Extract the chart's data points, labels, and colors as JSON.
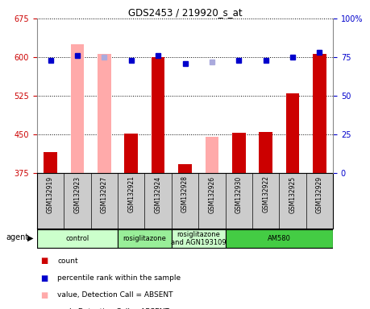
{
  "title": "GDS2453 / 219920_s_at",
  "samples": [
    "GSM132919",
    "GSM132923",
    "GSM132927",
    "GSM132921",
    "GSM132924",
    "GSM132928",
    "GSM132926",
    "GSM132930",
    "GSM132922",
    "GSM132925",
    "GSM132929"
  ],
  "count_values": [
    415,
    null,
    null,
    452,
    600,
    393,
    null,
    453,
    455,
    530,
    607
  ],
  "count_absent": [
    null,
    625,
    607,
    null,
    null,
    null,
    445,
    null,
    null,
    null,
    null
  ],
  "percentile_values": [
    73,
    76,
    null,
    73,
    76,
    71,
    null,
    73,
    73,
    75,
    78
  ],
  "percentile_absent": [
    null,
    null,
    75,
    null,
    null,
    null,
    72,
    null,
    null,
    null,
    null
  ],
  "ylim_left": [
    375,
    675
  ],
  "ylim_right": [
    0,
    100
  ],
  "yticks_left": [
    375,
    450,
    525,
    600,
    675
  ],
  "yticks_right": [
    0,
    25,
    50,
    75,
    100
  ],
  "agent_groups": [
    {
      "label": "control",
      "start": 0,
      "end": 3,
      "color": "#ccffcc"
    },
    {
      "label": "rosiglitazone",
      "start": 3,
      "end": 5,
      "color": "#99ee99"
    },
    {
      "label": "rosiglitazone\nand AGN193109",
      "start": 5,
      "end": 7,
      "color": "#ccffcc"
    },
    {
      "label": "AM580",
      "start": 7,
      "end": 11,
      "color": "#44cc44"
    }
  ],
  "bar_width": 0.5,
  "count_color": "#cc0000",
  "count_absent_color": "#ffaaaa",
  "percentile_color": "#0000cc",
  "percentile_absent_color": "#aaaadd",
  "left_label_color": "#cc0000",
  "right_label_color": "#0000cc",
  "legend_items": [
    {
      "color": "#cc0000",
      "marker": "s",
      "label": "count"
    },
    {
      "color": "#0000cc",
      "marker": "s",
      "label": "percentile rank within the sample"
    },
    {
      "color": "#ffaaaa",
      "marker": "s",
      "label": "value, Detection Call = ABSENT"
    },
    {
      "color": "#aaaadd",
      "marker": "s",
      "label": "rank, Detection Call = ABSENT"
    }
  ]
}
